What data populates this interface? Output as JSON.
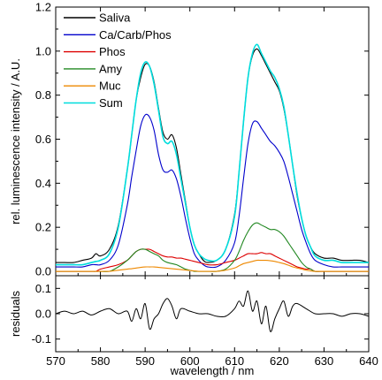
{
  "chart_data": [
    {
      "type": "line",
      "panel": "spectrum",
      "xlabel": "",
      "ylabel": "rel. luminescence intensity / A.U.",
      "xlim": [
        570,
        640
      ],
      "ylim": [
        -0.02,
        1.2
      ],
      "y_ticks": [
        0.0,
        0.2,
        0.4,
        0.6,
        0.8,
        1.0,
        1.2
      ],
      "y_tick_labels": [
        "0.0",
        "0.2",
        "0.4",
        "0.6",
        "0.8",
        "1.0",
        "1.2"
      ],
      "legend_position": "top-left",
      "grid": false,
      "x": [
        570,
        572,
        574,
        576,
        578,
        579,
        580,
        582,
        584,
        586,
        587,
        588,
        589,
        590,
        591,
        592,
        593,
        594,
        595,
        596,
        597,
        598,
        599,
        600,
        601,
        602,
        603,
        604,
        606,
        608,
        610,
        611,
        612,
        613,
        614,
        615,
        616,
        617,
        618,
        619,
        620,
        621,
        622,
        623,
        624,
        625,
        626,
        627,
        628,
        630,
        632,
        634,
        636,
        638,
        640
      ],
      "series": [
        {
          "name": "Saliva",
          "color": "#000000",
          "values": [
            0.04,
            0.04,
            0.04,
            0.05,
            0.06,
            0.08,
            0.07,
            0.1,
            0.21,
            0.46,
            0.62,
            0.78,
            0.88,
            0.94,
            0.93,
            0.86,
            0.74,
            0.63,
            0.6,
            0.62,
            0.56,
            0.44,
            0.32,
            0.2,
            0.12,
            0.08,
            0.05,
            0.04,
            0.05,
            0.1,
            0.26,
            0.45,
            0.68,
            0.88,
            0.98,
            1.01,
            0.98,
            0.94,
            0.9,
            0.86,
            0.82,
            0.74,
            0.62,
            0.48,
            0.34,
            0.24,
            0.16,
            0.11,
            0.08,
            0.06,
            0.06,
            0.05,
            0.05,
            0.05,
            0.04
          ]
        },
        {
          "name": "Ca/Carb/Phos",
          "color": "#0000cc",
          "values": [
            0.02,
            0.02,
            0.02,
            0.02,
            0.03,
            0.03,
            0.03,
            0.05,
            0.12,
            0.3,
            0.43,
            0.55,
            0.66,
            0.71,
            0.7,
            0.64,
            0.53,
            0.46,
            0.45,
            0.46,
            0.42,
            0.34,
            0.24,
            0.15,
            0.08,
            0.05,
            0.03,
            0.02,
            0.02,
            0.05,
            0.13,
            0.25,
            0.42,
            0.58,
            0.67,
            0.68,
            0.65,
            0.62,
            0.59,
            0.57,
            0.54,
            0.5,
            0.43,
            0.35,
            0.27,
            0.19,
            0.13,
            0.08,
            0.05,
            0.03,
            0.02,
            0.02,
            0.02,
            0.02,
            0.02
          ]
        },
        {
          "name": "Phos",
          "color": "#dd0000",
          "values": [
            0.0,
            0.0,
            0.0,
            0.0,
            0.0,
            0.0,
            0.01,
            0.02,
            0.03,
            0.05,
            0.07,
            0.09,
            0.1,
            0.1,
            0.1,
            0.09,
            0.08,
            0.07,
            0.065,
            0.065,
            0.06,
            0.06,
            0.055,
            0.05,
            0.045,
            0.04,
            0.035,
            0.03,
            0.03,
            0.04,
            0.05,
            0.06,
            0.07,
            0.08,
            0.08,
            0.08,
            0.085,
            0.08,
            0.08,
            0.07,
            0.06,
            0.05,
            0.04,
            0.03,
            0.02,
            0.015,
            0.01,
            0.01,
            0.0,
            0.0,
            0.0,
            0.0,
            0.0,
            0.0,
            0.0
          ]
        },
        {
          "name": "Amy",
          "color": "#228822",
          "values": [
            0.0,
            0.0,
            0.0,
            0.0,
            0.0,
            0.0,
            0.0,
            0.0,
            0.02,
            0.05,
            0.07,
            0.09,
            0.1,
            0.1,
            0.09,
            0.08,
            0.07,
            0.05,
            0.04,
            0.035,
            0.03,
            0.02,
            0.01,
            0.005,
            0.0,
            0.0,
            0.0,
            0.0,
            0.0,
            0.01,
            0.05,
            0.09,
            0.14,
            0.18,
            0.21,
            0.22,
            0.21,
            0.2,
            0.19,
            0.19,
            0.18,
            0.16,
            0.13,
            0.1,
            0.07,
            0.04,
            0.02,
            0.01,
            0.0,
            0.0,
            0.0,
            0.0,
            0.0,
            0.0,
            0.0
          ]
        },
        {
          "name": "Muc",
          "color": "#ee8800",
          "values": [
            0.0,
            0.0,
            0.0,
            0.0,
            0.0,
            0.0,
            0.0,
            0.0,
            0.005,
            0.01,
            0.012,
            0.015,
            0.018,
            0.02,
            0.02,
            0.02,
            0.018,
            0.016,
            0.014,
            0.012,
            0.01,
            0.008,
            0.006,
            0.004,
            0.002,
            0.0,
            0.0,
            0.0,
            0.0,
            0.005,
            0.015,
            0.025,
            0.035,
            0.04,
            0.045,
            0.05,
            0.05,
            0.05,
            0.048,
            0.045,
            0.04,
            0.035,
            0.028,
            0.02,
            0.015,
            0.01,
            0.005,
            0.002,
            0.0,
            0.0,
            0.0,
            0.0,
            0.0,
            0.0,
            0.0
          ]
        },
        {
          "name": "Sum",
          "color": "#00dddd",
          "values": [
            0.03,
            0.03,
            0.03,
            0.03,
            0.04,
            0.045,
            0.05,
            0.08,
            0.2,
            0.46,
            0.62,
            0.78,
            0.9,
            0.95,
            0.93,
            0.85,
            0.73,
            0.61,
            0.58,
            0.59,
            0.53,
            0.42,
            0.31,
            0.2,
            0.12,
            0.08,
            0.06,
            0.05,
            0.05,
            0.1,
            0.25,
            0.45,
            0.68,
            0.88,
            0.99,
            1.03,
            0.99,
            0.95,
            0.91,
            0.88,
            0.83,
            0.75,
            0.62,
            0.48,
            0.35,
            0.24,
            0.16,
            0.11,
            0.07,
            0.05,
            0.05,
            0.04,
            0.04,
            0.04,
            0.04
          ]
        }
      ]
    },
    {
      "type": "line",
      "panel": "residuals",
      "xlabel": "wavelength / nm",
      "ylabel": "residuals",
      "xlim": [
        570,
        640
      ],
      "ylim": [
        -0.15,
        0.15
      ],
      "x_ticks": [
        570,
        580,
        590,
        600,
        610,
        620,
        630,
        640
      ],
      "x_tick_labels": [
        "570",
        "580",
        "590",
        "600",
        "610",
        "620",
        "630",
        "640"
      ],
      "y_ticks": [
        -0.1,
        0.0,
        0.1
      ],
      "y_tick_labels": [
        "-0.1",
        "0.0",
        "0.1"
      ],
      "grid": false,
      "x": [
        570,
        572,
        574,
        576,
        578,
        580,
        582,
        584,
        586,
        587,
        588,
        589,
        590,
        591,
        592,
        593,
        594,
        595,
        596,
        597,
        598,
        600,
        602,
        604,
        606,
        608,
        610,
        611,
        612,
        613,
        614,
        615,
        616,
        617,
        618,
        619,
        620,
        621,
        622,
        623,
        624,
        626,
        628,
        630,
        632,
        634,
        636,
        638,
        640
      ],
      "series": [
        {
          "name": "",
          "color": "#000000",
          "values": [
            0.0,
            0.01,
            0.0,
            0.01,
            -0.005,
            0.01,
            0.02,
            0.0,
            0.01,
            -0.03,
            0.02,
            -0.02,
            0.04,
            -0.06,
            -0.02,
            0.0,
            0.04,
            0.06,
            0.03,
            -0.02,
            0.02,
            0.01,
            0.0,
            0.0,
            -0.01,
            -0.01,
            0.02,
            0.05,
            0.03,
            0.09,
            0.01,
            0.05,
            -0.04,
            0.03,
            -0.07,
            -0.02,
            0.02,
            0.05,
            -0.01,
            0.03,
            0.04,
            0.02,
            0.0,
            0.0,
            0.0,
            -0.01,
            0.0,
            0.0,
            -0.01
          ]
        }
      ]
    }
  ]
}
